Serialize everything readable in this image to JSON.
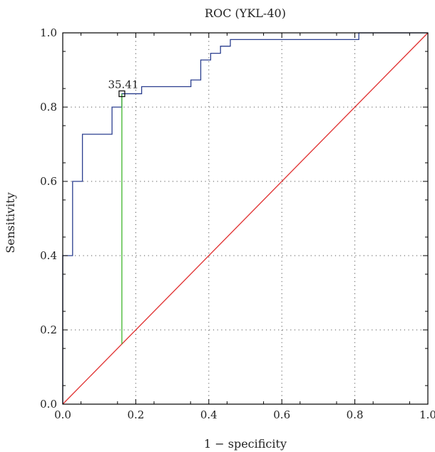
{
  "chart_data": {
    "type": "line",
    "title": "ROC (YKL-40)",
    "xlabel": "1 − specificity",
    "ylabel": "Sensitivity",
    "xlim": [
      0,
      1
    ],
    "ylim": [
      0,
      1
    ],
    "x_ticks": [
      "0.0",
      "0.2",
      "0.4",
      "0.6",
      "0.8",
      "1.0"
    ],
    "y_ticks": [
      "0.0",
      "0.2",
      "0.4",
      "0.6",
      "0.8",
      "1.0"
    ],
    "grid": true,
    "series": [
      {
        "role": "roc-curve",
        "color": "#2b3f8f",
        "step": true,
        "points": [
          [
            0.0,
            0.0
          ],
          [
            0.0,
            0.4
          ],
          [
            0.027,
            0.4
          ],
          [
            0.027,
            0.6
          ],
          [
            0.054,
            0.6
          ],
          [
            0.054,
            0.727
          ],
          [
            0.135,
            0.727
          ],
          [
            0.135,
            0.8
          ],
          [
            0.162,
            0.8
          ],
          [
            0.162,
            0.836
          ],
          [
            0.216,
            0.836
          ],
          [
            0.216,
            0.855
          ],
          [
            0.351,
            0.855
          ],
          [
            0.351,
            0.873
          ],
          [
            0.378,
            0.873
          ],
          [
            0.378,
            0.927
          ],
          [
            0.405,
            0.927
          ],
          [
            0.405,
            0.945
          ],
          [
            0.432,
            0.945
          ],
          [
            0.432,
            0.964
          ],
          [
            0.459,
            0.964
          ],
          [
            0.459,
            0.982
          ],
          [
            0.811,
            0.982
          ],
          [
            0.811,
            1.0
          ],
          [
            1.0,
            1.0
          ]
        ]
      },
      {
        "role": "reference-line",
        "color": "#e03030",
        "points": [
          [
            0,
            0
          ],
          [
            1,
            1
          ]
        ]
      },
      {
        "role": "youden-line",
        "color": "#3fb62c",
        "points": [
          [
            0.162,
            0.162
          ],
          [
            0.162,
            0.836
          ]
        ]
      }
    ],
    "annotations": [
      {
        "label": "35.41",
        "x": 0.162,
        "y": 0.836,
        "marker": "square"
      }
    ]
  }
}
